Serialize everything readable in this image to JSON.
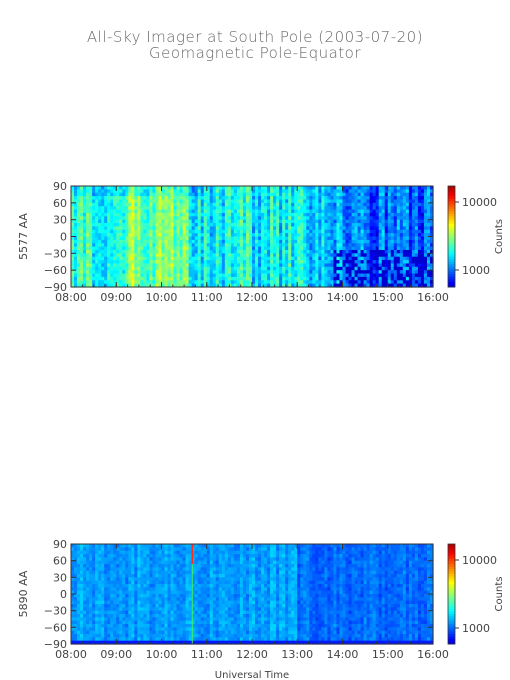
{
  "header": {
    "title_line1": "All-Sky Imager at South Pole (2003-07-20)",
    "title_line2": "Geomagnetic Pole-Equator"
  },
  "chart_data": [
    {
      "type": "heatmap",
      "ylabel": "5577 AA",
      "xlabel": "",
      "x_ticks": [
        "08:00",
        "09:00",
        "10:00",
        "11:00",
        "12:00",
        "13:00",
        "14:00",
        "15:00",
        "16:00"
      ],
      "x_range": [
        "08:00",
        "16:00"
      ],
      "y_ticks": [
        90,
        60,
        30,
        0,
        -30,
        -60,
        -90
      ],
      "ylim": [
        -90,
        90
      ],
      "colorbar": {
        "label": "Counts",
        "ticks": [
          "10000",
          "1000"
        ],
        "scale": "log"
      },
      "colors": {
        "high": "#22dd66",
        "mid": "#1199ff",
        "low": "#4a1880"
      }
    },
    {
      "type": "heatmap",
      "ylabel": "5890 AA",
      "xlabel": "Universal Time",
      "x_ticks": [
        "08:00",
        "09:00",
        "10:00",
        "11:00",
        "12:00",
        "13:00",
        "14:00",
        "15:00",
        "16:00"
      ],
      "x_range": [
        "08:00",
        "16:00"
      ],
      "y_ticks": [
        90,
        60,
        30,
        0,
        -30,
        -60,
        -90
      ],
      "ylim": [
        -90,
        90
      ],
      "colorbar": {
        "label": "Counts",
        "ticks": [
          "10000",
          "1000"
        ],
        "scale": "log"
      },
      "colors": {
        "base": "#1f4fd6",
        "dark": "#1a2f9a",
        "highlight": "#ff3322"
      }
    }
  ]
}
